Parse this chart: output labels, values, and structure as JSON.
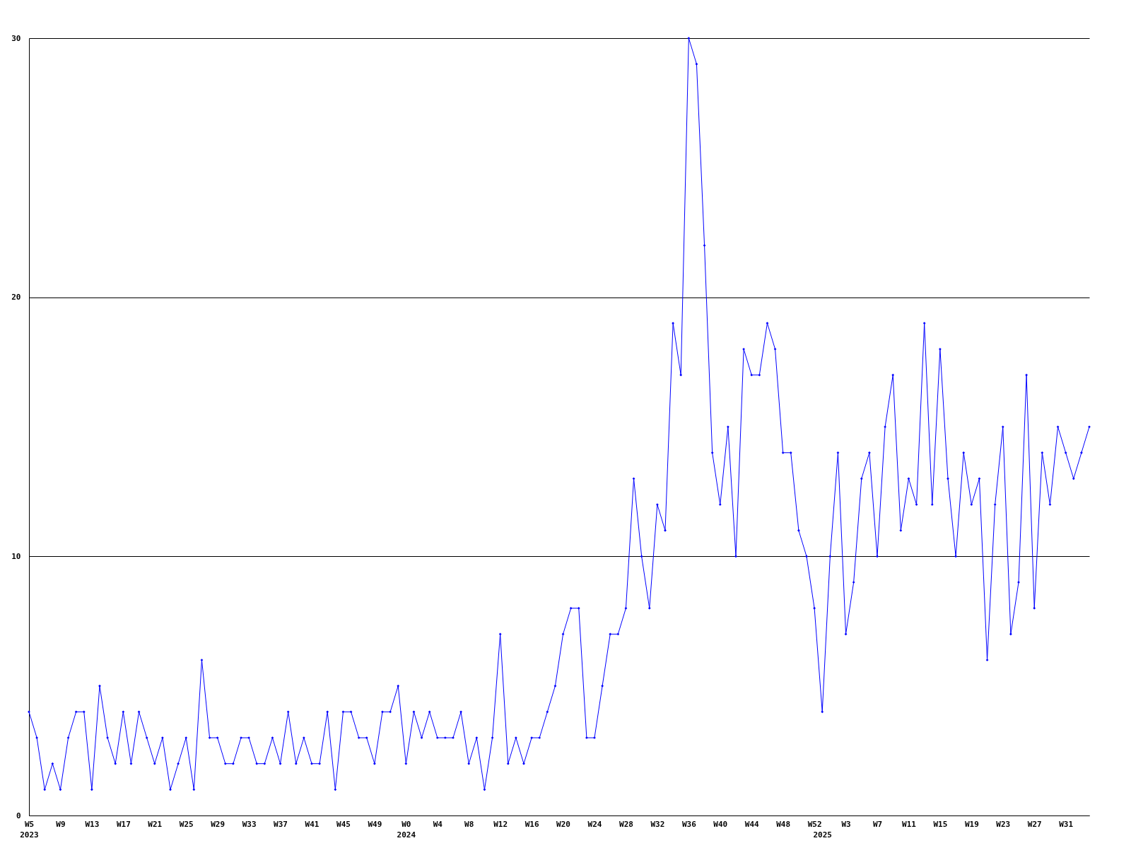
{
  "chart_data": {
    "type": "line",
    "categories": [
      "W5\n2023",
      null,
      null,
      null,
      "W9",
      null,
      null,
      null,
      "W13",
      null,
      null,
      null,
      "W17",
      null,
      null,
      null,
      "W21",
      null,
      null,
      null,
      "W25",
      null,
      null,
      null,
      "W29",
      null,
      null,
      null,
      "W33",
      null,
      null,
      null,
      "W37",
      null,
      null,
      null,
      "W41",
      null,
      null,
      null,
      "W45",
      null,
      null,
      null,
      "W49",
      null,
      null,
      null,
      "W0\n2024",
      null,
      null,
      null,
      "W4",
      null,
      null,
      null,
      "W8",
      null,
      null,
      null,
      "W12",
      null,
      null,
      null,
      "W16",
      null,
      null,
      null,
      "W20",
      null,
      null,
      null,
      "W24",
      null,
      null,
      null,
      "W28",
      null,
      null,
      null,
      "W32",
      null,
      null,
      null,
      "W36",
      null,
      null,
      null,
      "W40",
      null,
      null,
      null,
      "W44",
      null,
      null,
      null,
      "W48",
      null,
      null,
      null,
      "W52",
      "\n2025",
      null,
      null,
      "W3",
      null,
      null,
      null,
      "W7",
      null,
      null,
      null,
      "W11",
      null,
      null,
      null,
      "W15",
      null,
      null,
      null,
      "W19",
      null,
      null,
      null,
      "W23",
      null,
      null,
      null,
      "W27",
      null,
      null,
      null,
      "W31",
      null,
      null,
      null
    ],
    "values": [
      4,
      3,
      1,
      2,
      1,
      3,
      4,
      4,
      1,
      5,
      3,
      2,
      4,
      2,
      4,
      3,
      2,
      3,
      1,
      2,
      3,
      1,
      6,
      3,
      3,
      2,
      2,
      3,
      3,
      2,
      2,
      3,
      2,
      4,
      2,
      3,
      2,
      2,
      4,
      1,
      4,
      4,
      3,
      3,
      2,
      4,
      4,
      5,
      2,
      4,
      3,
      4,
      3,
      3,
      3,
      4,
      2,
      3,
      1,
      3,
      7,
      2,
      3,
      2,
      3,
      3,
      4,
      5,
      7,
      8,
      8,
      3,
      3,
      5,
      7,
      7,
      8,
      13,
      10,
      8,
      12,
      11,
      19,
      17,
      30,
      29,
      22,
      14,
      12,
      15,
      10,
      18,
      17,
      17,
      19,
      18,
      14,
      14,
      11,
      10,
      8,
      4,
      10,
      14,
      7,
      9,
      13,
      14,
      10,
      15,
      17,
      11,
      13,
      12,
      19,
      12,
      18,
      13,
      10,
      14,
      12,
      13,
      6,
      12,
      15,
      7,
      9,
      17,
      8,
      14,
      12,
      15,
      14,
      13,
      14,
      15
    ],
    "color": "#0000ff",
    "ylim": [
      0,
      30
    ],
    "yticks": [
      0,
      10,
      20,
      30
    ],
    "grid": "y",
    "marker": "diamond",
    "line_style": "solid"
  }
}
